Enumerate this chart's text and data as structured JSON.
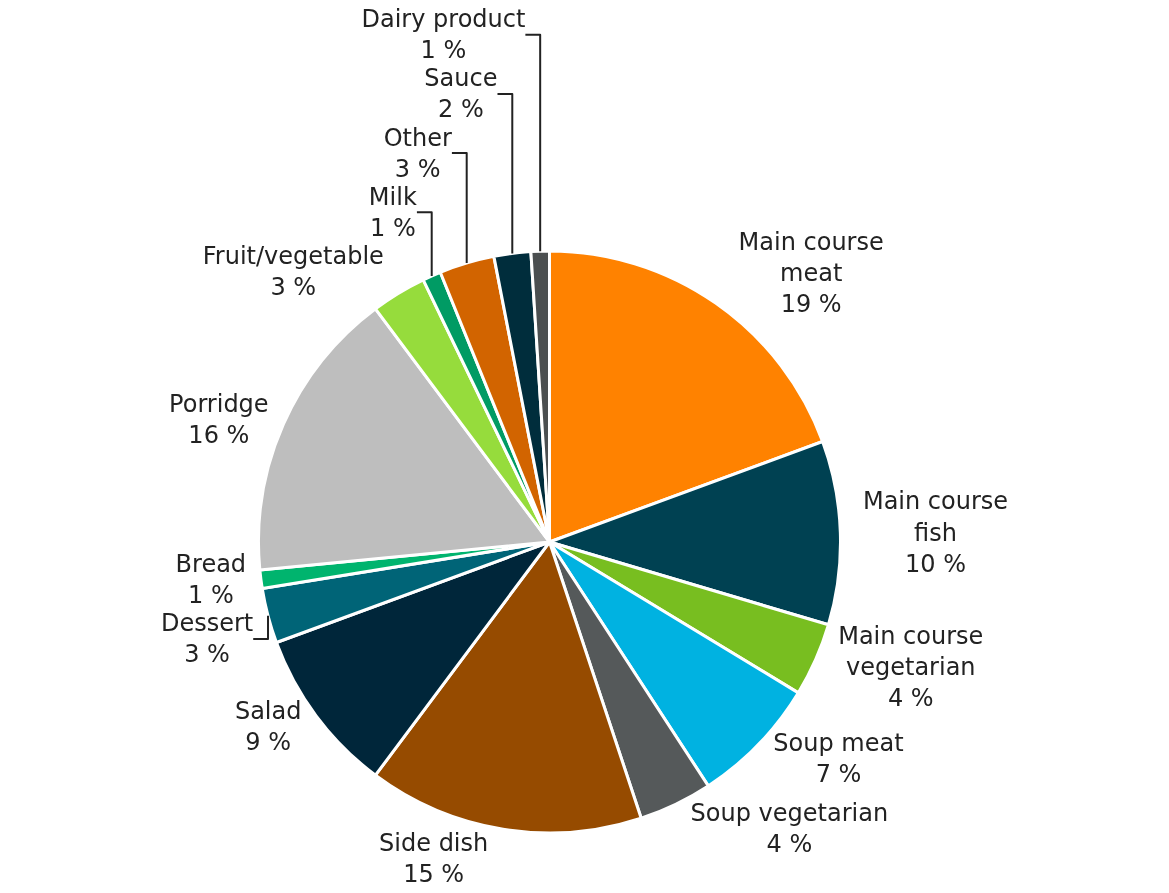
{
  "chart_data": {
    "type": "pie",
    "categories": [
      "Main course meat",
      "Main course fish",
      "Main course vegetarian",
      "Soup meat",
      "Soup vegetarian",
      "Side dish",
      "Salad",
      "Dessert",
      "Bread",
      "Porridge",
      "Fruit/vegetable",
      "Milk",
      "Other",
      "Sauce",
      "Dairy product"
    ],
    "values": [
      19,
      10,
      4,
      7,
      4,
      15,
      9,
      3,
      1,
      16,
      3,
      1,
      3,
      2,
      1
    ],
    "value_labels": [
      "19 %",
      "10 %",
      "4 %",
      "7 %",
      "4 %",
      "15 %",
      "9 %",
      "3 %",
      "1 %",
      "16 %",
      "3 %",
      "1 %",
      "3 %",
      "2 %",
      "1 %"
    ],
    "colors": [
      "#ff8200",
      "#004152",
      "#78be20",
      "#00b2e1",
      "#55595a",
      "#964b00",
      "#00263a",
      "#006477",
      "#00b46e",
      "#bebebe",
      "#96dc3c",
      "#009b64",
      "#d26400",
      "#002d3c",
      "#4b4f50"
    ],
    "legend": false
  }
}
